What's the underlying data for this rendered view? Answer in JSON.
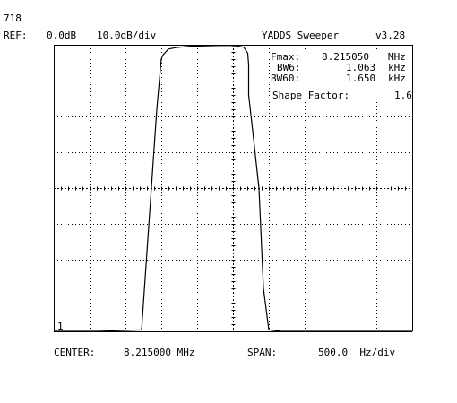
{
  "header": {
    "screen_id": "718",
    "ref_label": "REF:",
    "ref_value": "0.0dB",
    "scale_value": "10.0dB/div",
    "app_title": "YADDS Sweeper",
    "version": "v3.28"
  },
  "measurements": {
    "fmax": {
      "label": "Fmax:",
      "value": "8.215050",
      "unit": "MHz"
    },
    "bw6": {
      "label": "BW6:",
      "value": "1.063",
      "unit": "kHz"
    },
    "bw60": {
      "label": "BW60:",
      "value": "1.650",
      "unit": "kHz"
    },
    "shape_factor": {
      "label": "Shape Factor:",
      "value": "1.6"
    }
  },
  "trace_number": "1",
  "footer": {
    "center_label": "CENTER:",
    "center_value": "8.215000 MHz",
    "span_label": "SPAN:",
    "span_value": "500.0  Hz/div"
  },
  "chart_data": {
    "type": "line",
    "title": "",
    "xlabel": "",
    "ylabel": "",
    "x_unit": "Hz offset from center",
    "y_unit": "dB",
    "xlim": [
      -2500,
      2500
    ],
    "ylim": [
      -100,
      0
    ],
    "grid": true,
    "series": [
      {
        "x": [
          -2500,
          -1875,
          -1275,
          -1062,
          -1000,
          -975,
          -900,
          -800,
          -600,
          -300,
          -100,
          25,
          150,
          206,
          219,
          219,
          275,
          362,
          425,
          500,
          675,
          2500
        ],
        "y": [
          -100,
          -100,
          -99.5,
          -22.5,
          -5,
          -3.5,
          -1.5,
          -1,
          -0.5,
          -0.3,
          -0.2,
          -0.3,
          -0.8,
          -3,
          -7,
          -17.5,
          -30,
          -50,
          -85,
          -99.5,
          -100,
          -100
        ]
      }
    ]
  }
}
